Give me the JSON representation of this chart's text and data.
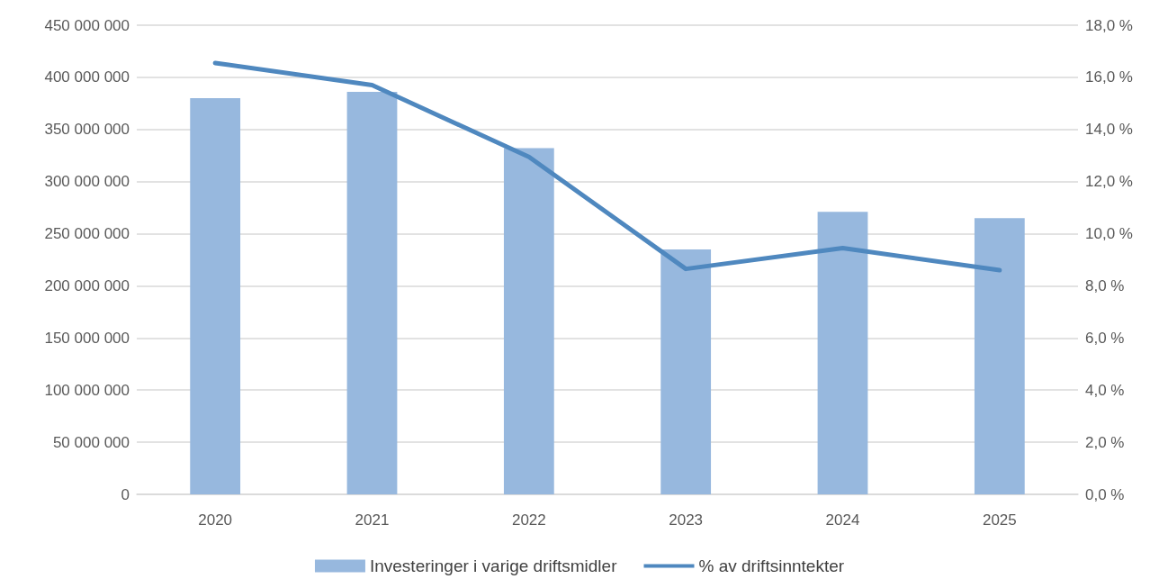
{
  "chart_data": {
    "type": "bar",
    "categories": [
      "2020",
      "2021",
      "2022",
      "2023",
      "2024",
      "2025"
    ],
    "series": [
      {
        "name": "Investeringer i varige driftsmidler",
        "color": "#97b8de",
        "values": [
          380000000,
          386000000,
          332000000,
          235000000,
          271000000,
          265000000
        ]
      },
      {
        "name": "% av driftsinntekter",
        "type": "line",
        "axis": "y2",
        "color": "#4f88bf",
        "values": [
          16.55,
          15.7,
          12.95,
          8.65,
          9.45,
          8.6
        ]
      }
    ],
    "ylim": [
      0,
      450000000
    ],
    "yticks": [
      {
        "value": 0,
        "label": "0"
      },
      {
        "value": 50000000,
        "label": "50 000 000"
      },
      {
        "value": 100000000,
        "label": "100 000 000"
      },
      {
        "value": 150000000,
        "label": "150 000 000"
      },
      {
        "value": 200000000,
        "label": "200 000 000"
      },
      {
        "value": 250000000,
        "label": "250 000 000"
      },
      {
        "value": 300000000,
        "label": "300 000 000"
      },
      {
        "value": 350000000,
        "label": "350 000 000"
      },
      {
        "value": 400000000,
        "label": "400 000 000"
      },
      {
        "value": 450000000,
        "label": "450 000 000"
      }
    ],
    "y2lim": [
      0,
      18
    ],
    "y2ticks": [
      {
        "value": 0,
        "label": "0,0 %"
      },
      {
        "value": 2,
        "label": "2,0 %"
      },
      {
        "value": 4,
        "label": "4,0 %"
      },
      {
        "value": 6,
        "label": "6,0 %"
      },
      {
        "value": 8,
        "label": "8,0 %"
      },
      {
        "value": 10,
        "label": "10,0 %"
      },
      {
        "value": 12,
        "label": "12,0 %"
      },
      {
        "value": 14,
        "label": "14,0 %"
      },
      {
        "value": 16,
        "label": "16,0 %"
      },
      {
        "value": 18,
        "label": "18,0 %"
      }
    ],
    "grid": "y",
    "legend": "bottom",
    "marker": "none",
    "line_style": "solid"
  }
}
